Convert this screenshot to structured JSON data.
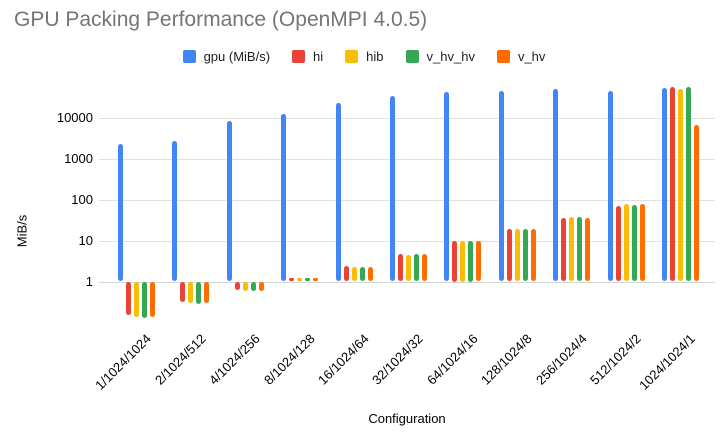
{
  "chart_data": {
    "type": "bar",
    "title": "GPU Packing Performance (OpenMPI 4.0.5)",
    "xlabel": "Configuration",
    "ylabel": "MiB/s",
    "y_scale": "log",
    "y_baseline": 1,
    "y_ticks": [
      10000,
      1000,
      100,
      10,
      1
    ],
    "ylim": [
      0.115,
      58000
    ],
    "grid": "horizontal",
    "legend_position": "top",
    "title_color": "#757575",
    "categories": [
      "1/1024/1024",
      "2/1024/512",
      "4/1024/256",
      "8/1024/128",
      "16/1024/64",
      "32/1024/32",
      "64/1024/16",
      "128/1024/8",
      "256/1024/4",
      "512/1024/2",
      "1024/1024/1"
    ],
    "series": [
      {
        "name": "gpu (MiB/s)",
        "color": "#4285F4",
        "values": [
          2200,
          2600,
          8000,
          12300,
          23000,
          33000,
          42000,
          44000,
          50000,
          44000,
          53000
        ]
      },
      {
        "name": "hi",
        "color": "#EA4335",
        "values": [
          0.15,
          0.31,
          0.62,
          1.22,
          2.4,
          4.7,
          10,
          19,
          35,
          71,
          54000
        ]
      },
      {
        "name": "hib",
        "color": "#FBBC04",
        "values": [
          0.14,
          0.3,
          0.6,
          1.2,
          2.3,
          4.4,
          10,
          19,
          37,
          76,
          50000
        ]
      },
      {
        "name": "v_hv_hv",
        "color": "#34A853",
        "values": [
          0.13,
          0.29,
          0.58,
          1.2,
          2.3,
          4.6,
          10,
          19.5,
          37,
          73,
          54000
        ]
      },
      {
        "name": "v_hv",
        "color": "#FF6D01",
        "values": [
          0.14,
          0.3,
          0.6,
          1.2,
          2.3,
          4.6,
          9.8,
          19,
          36,
          76,
          6400
        ]
      }
    ]
  }
}
